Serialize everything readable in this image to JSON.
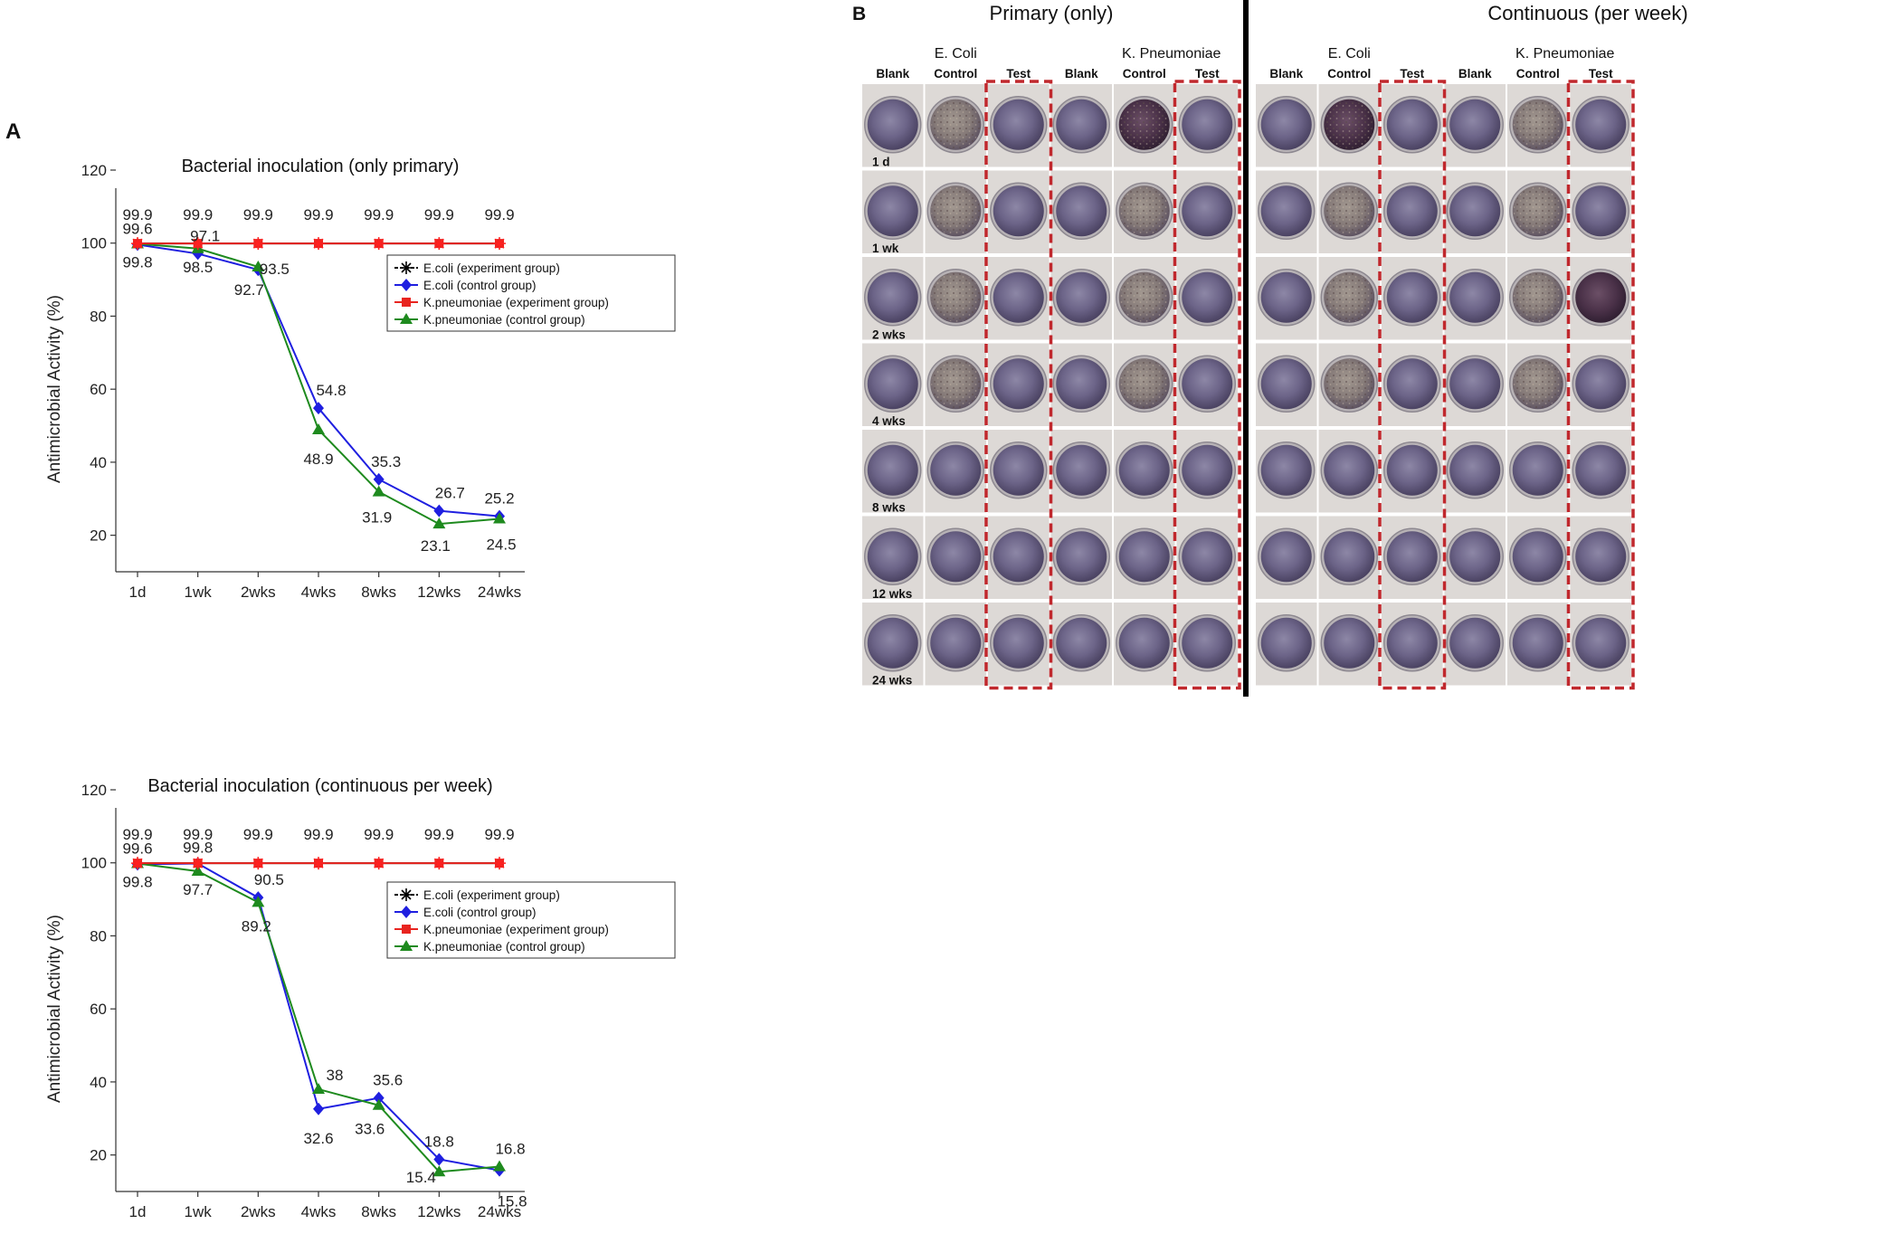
{
  "panel_labels": {
    "a": "A",
    "b": "B"
  },
  "chart_data": [
    {
      "type": "line",
      "title": "Bacterial inoculation (only primary)",
      "xlabel": "",
      "ylabel": "Antimicrobial Activity (%)",
      "categories": [
        "1d",
        "1wk",
        "2wks",
        "4wks",
        "8wks",
        "12wks",
        "24wks"
      ],
      "ylim": [
        10,
        120
      ],
      "yticks": [
        20,
        40,
        60,
        80,
        100,
        120
      ],
      "legend": "inside-right",
      "grid": false,
      "series": [
        {
          "name": "E.coli (experiment group)",
          "color": "#000000",
          "marker": "asterisk",
          "values": [
            99.9,
            99.9,
            99.9,
            99.9,
            99.9,
            99.9,
            99.9
          ],
          "labels": [
            "99.9",
            "99.9",
            "99.9",
            "99.9",
            "99.9",
            "99.9",
            "99.9"
          ]
        },
        {
          "name": "E.coli (control group)",
          "color": "#1f1fe0",
          "marker": "diamond",
          "values": [
            99.6,
            97.1,
            92.7,
            54.8,
            35.3,
            26.7,
            25.2
          ],
          "labels": [
            "99.6",
            "97.1",
            "92.7",
            "54.8",
            "35.3",
            "26.7",
            "25.2"
          ]
        },
        {
          "name": "K.pneumoniae (experiment group)",
          "color": "#e8241f",
          "marker": "square",
          "values": [
            99.9,
            99.9,
            99.9,
            99.9,
            99.9,
            99.9,
            99.9
          ],
          "labels": []
        },
        {
          "name": "K.pneumoniae (control group)",
          "color": "#1e8a1e",
          "marker": "triangle",
          "values": [
            99.8,
            98.5,
            93.5,
            48.9,
            31.9,
            23.1,
            24.5
          ],
          "labels": [
            "99.8",
            "98.5",
            "93.5",
            "48.9",
            "31.9",
            "23.1",
            "24.5"
          ]
        }
      ]
    },
    {
      "type": "line",
      "title": "Bacterial inoculation (continuous per week)",
      "xlabel": "",
      "ylabel": "Antimicrobial Activity (%)",
      "categories": [
        "1d",
        "1wk",
        "2wks",
        "4wks",
        "8wks",
        "12wks",
        "24wks"
      ],
      "ylim": [
        10,
        120
      ],
      "yticks": [
        20,
        40,
        60,
        80,
        100,
        120
      ],
      "legend": "inside-right",
      "grid": false,
      "series": [
        {
          "name": "E.coli (experiment group)",
          "color": "#000000",
          "marker": "asterisk",
          "values": [
            99.9,
            99.9,
            99.9,
            99.9,
            99.9,
            99.9,
            99.9
          ],
          "labels": [
            "99.9",
            "99.9",
            "99.9",
            "99.9",
            "99.9",
            "99.9",
            "99.9"
          ]
        },
        {
          "name": "E.coli (control group)",
          "color": "#1f1fe0",
          "marker": "diamond",
          "values": [
            99.6,
            99.8,
            90.5,
            32.6,
            35.6,
            18.8,
            15.8
          ],
          "labels": [
            "99.6",
            "99.8",
            "90.5",
            "32.6",
            "35.6",
            "18.8",
            "15.8"
          ]
        },
        {
          "name": "K.pneumoniae (experiment group)",
          "color": "#e8241f",
          "marker": "square",
          "values": [
            99.9,
            99.9,
            99.9,
            99.9,
            99.9,
            99.9,
            99.9
          ],
          "labels": []
        },
        {
          "name": "K.pneumoniae (control group)",
          "color": "#1e8a1e",
          "marker": "triangle",
          "values": [
            99.8,
            97.7,
            89.2,
            38.0,
            33.6,
            15.4,
            16.8
          ],
          "labels": [
            "99.8",
            "97.7",
            "89.2",
            "38",
            "33.6",
            "15.4",
            "16.8"
          ]
        }
      ]
    }
  ],
  "panel_b": {
    "sections": [
      "Primary (only)",
      "Continuous (per week)"
    ],
    "species": [
      "E. Coli",
      "K. Pneumoniae",
      "E. Coli",
      "K. Pneumoniae"
    ],
    "columns": [
      "Blank",
      "Control",
      "Test",
      "Blank",
      "Control",
      "Test",
      "Blank",
      "Control",
      "Test",
      "Blank",
      "Control",
      "Test"
    ],
    "rows": [
      "1 d",
      "1 wk",
      "2 wks",
      "4 wks",
      "8 wks",
      "12 wks",
      "24 wks"
    ],
    "highlight_color": "#c0282d",
    "highlighted_columns": [
      2,
      5,
      8,
      11
    ]
  }
}
